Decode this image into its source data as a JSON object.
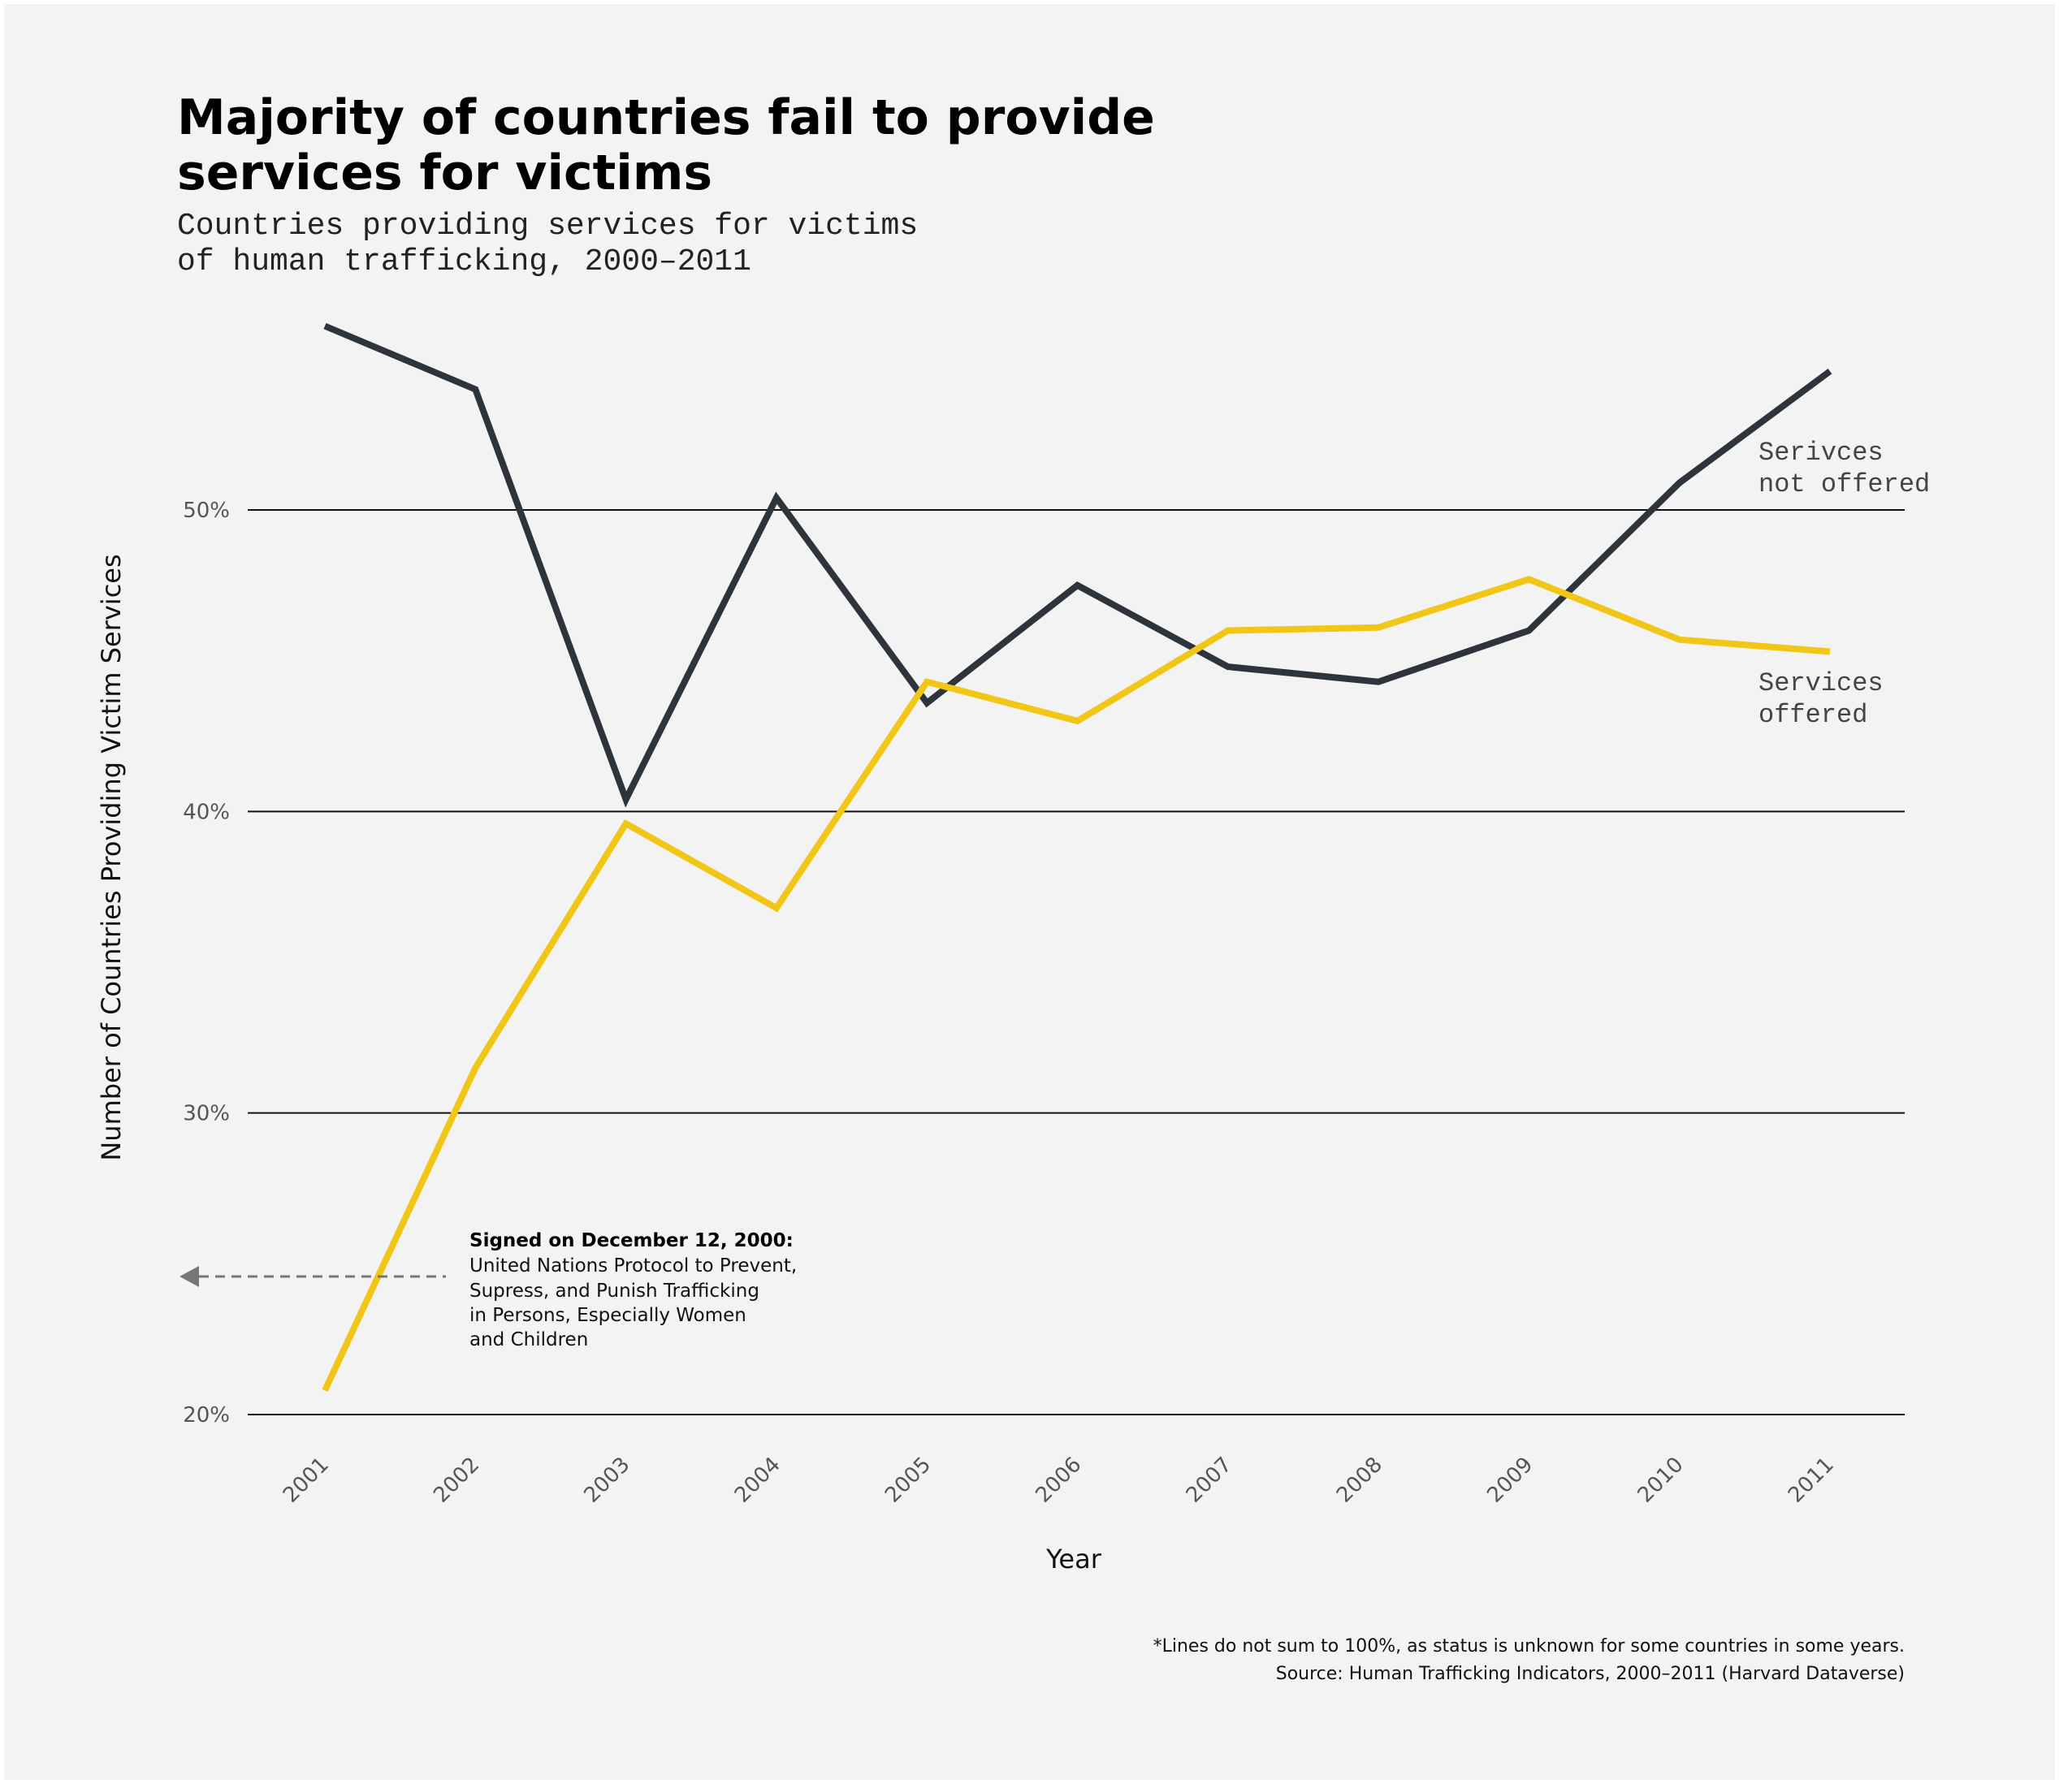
{
  "chart_data": {
    "type": "line",
    "title": [
      "Majority of countries fail to provide",
      "services for victims"
    ],
    "subtitle": [
      "Countries providing services for victims",
      "of human trafficking, 2000–2011"
    ],
    "xlabel": "Year",
    "ylabel": "Number of Countries Providing Victim Services",
    "x": [
      "2001",
      "2002",
      "2003",
      "2004",
      "2005",
      "2006",
      "2007",
      "2008",
      "2009",
      "2010",
      "2011"
    ],
    "ylim": [
      20,
      58
    ],
    "yticks": [
      20,
      30,
      40,
      50
    ],
    "ytick_labels": [
      "20%",
      "30%",
      "40%",
      "50%"
    ],
    "grid": "horizontal",
    "series": [
      {
        "label_lines": [
          "Serivces",
          "not offered"
        ],
        "color": "#2e343b",
        "values": [
          56.1,
          54.0,
          40.4,
          50.4,
          43.6,
          47.5,
          44.8,
          44.3,
          46.0,
          50.9,
          54.6
        ]
      },
      {
        "label_lines": [
          "Services",
          "offered"
        ],
        "color": "#f2c617",
        "values": [
          20.8,
          31.5,
          39.6,
          36.8,
          44.3,
          43.0,
          46.0,
          46.1,
          47.7,
          45.7,
          45.3
        ]
      }
    ],
    "annotation": {
      "bold": "Signed on December 12, 2000:",
      "lines": [
        "United Nations Protocol to Prevent,",
        "Supress, and Punish Trafficking",
        "in Persons, Especially Women",
        "and Children"
      ],
      "arrow_color": "#777777"
    },
    "footnotes": [
      "*Lines do not sum to 100%, as status is unknown for some countries in some years.",
      "Source: Human Trafficking Indicators, 2000–2011 (Harvard Dataverse)"
    ]
  }
}
